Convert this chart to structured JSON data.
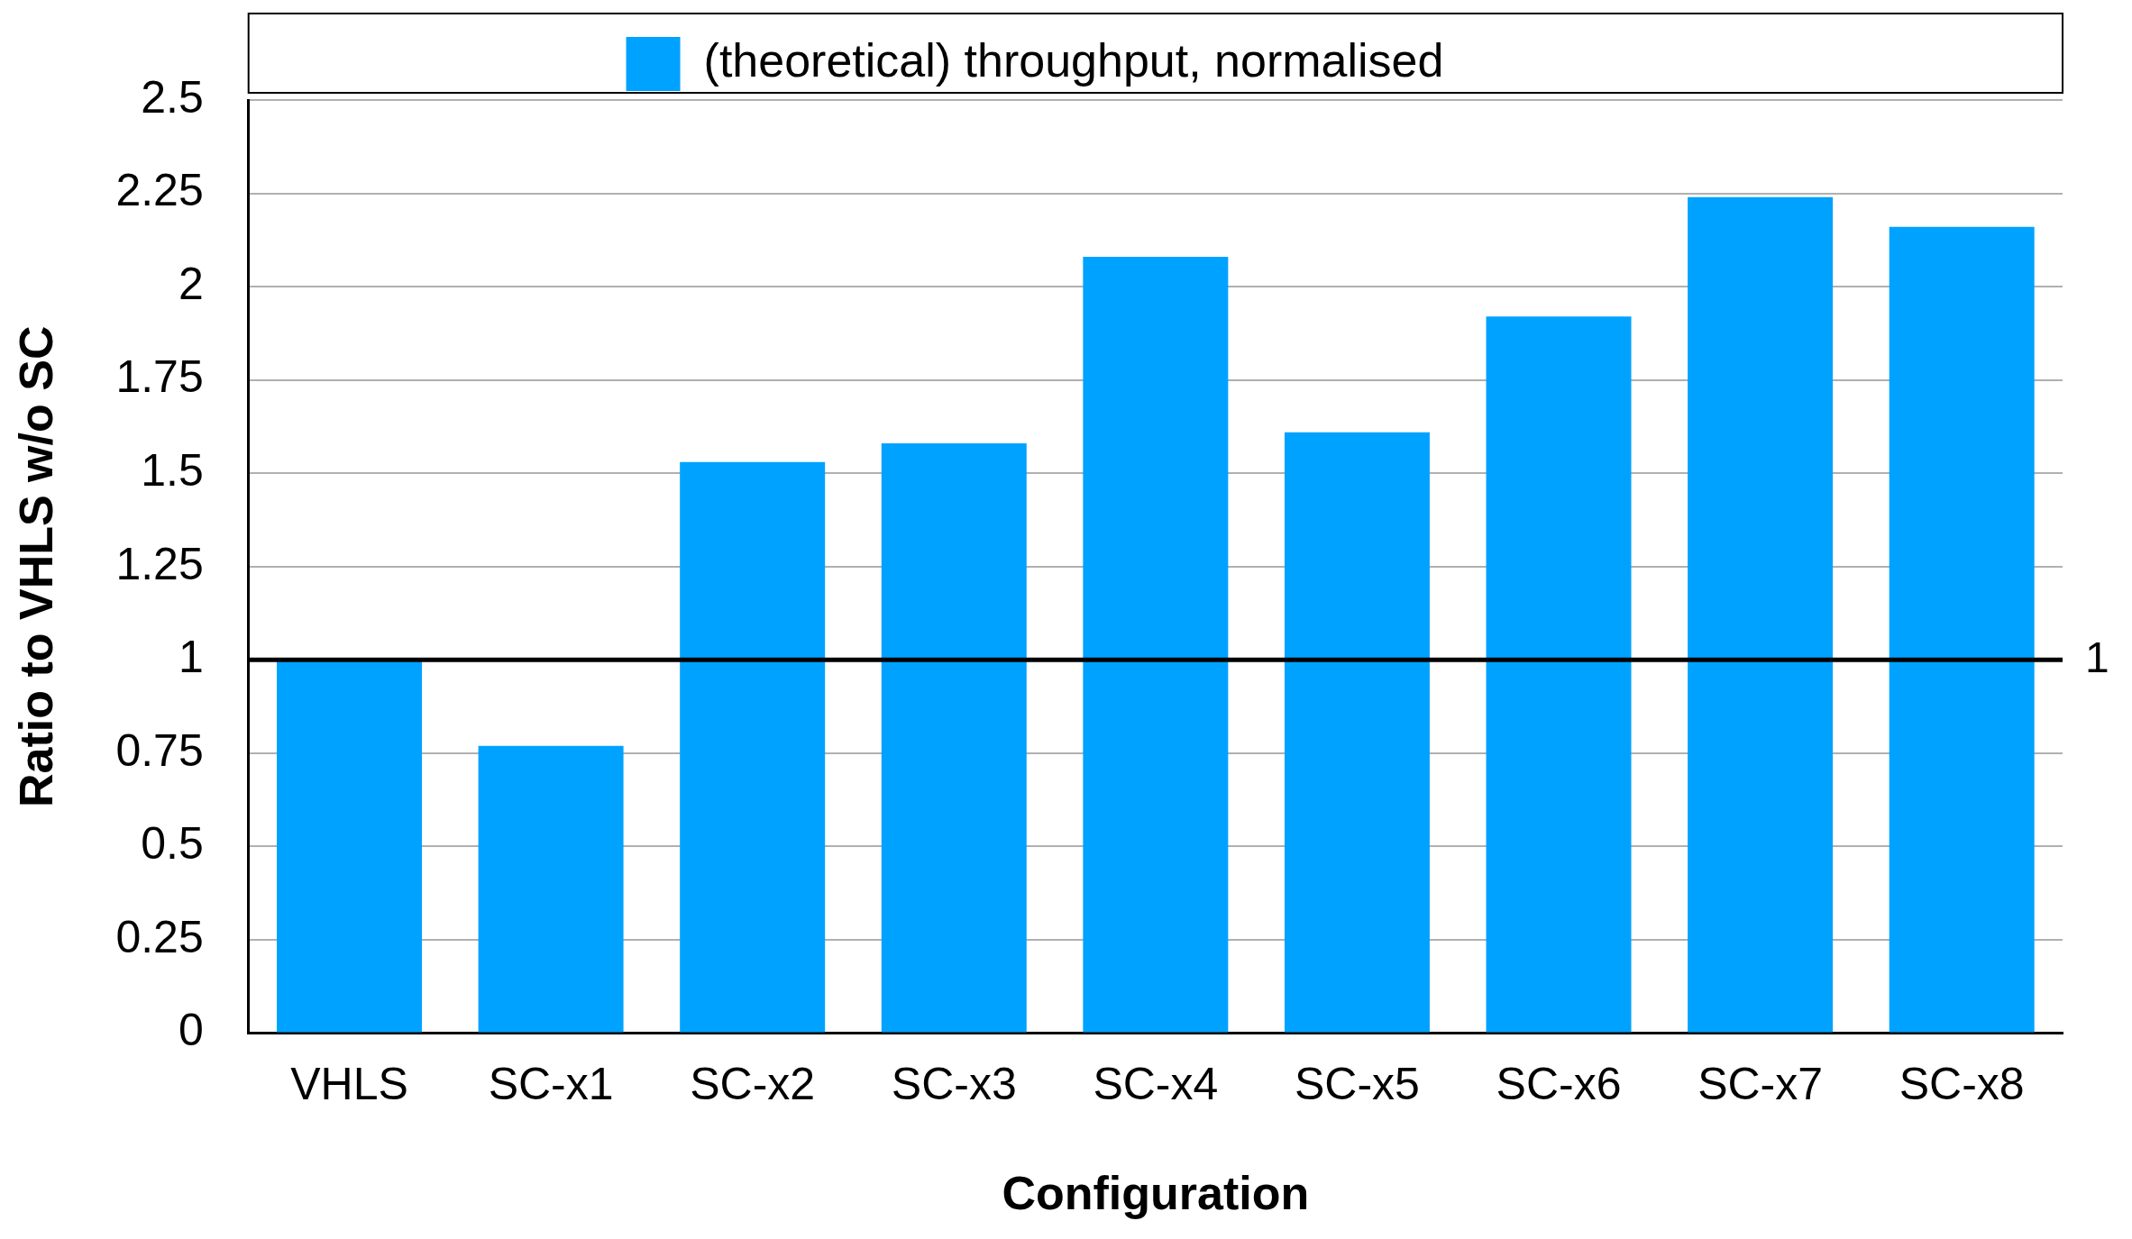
{
  "chart_data": {
    "type": "bar",
    "xlabel": "Configuration",
    "ylabel": "Ratio to VHLS w/o SC",
    "categories": [
      "VHLS",
      "SC-x1",
      "SC-x2",
      "SC-x3",
      "SC-x4",
      "SC-x5",
      "SC-x6",
      "SC-x7",
      "SC-x8"
    ],
    "series": [
      {
        "name": "(theoretical) throughput, normalised",
        "color": "#00a2ff",
        "values": [
          1.0,
          0.77,
          1.53,
          1.58,
          2.08,
          1.61,
          1.92,
          2.24,
          2.16
        ]
      }
    ],
    "ylim": [
      0,
      2.5
    ],
    "yticks": [
      0,
      0.25,
      0.5,
      0.75,
      1,
      1.25,
      1.5,
      1.75,
      2,
      2.25,
      2.5
    ],
    "grid": "y",
    "legend": "top",
    "ref_lines": [
      {
        "axis": "y",
        "value": 1,
        "label": "1",
        "color": "#000000",
        "line_style": "solid"
      }
    ]
  }
}
